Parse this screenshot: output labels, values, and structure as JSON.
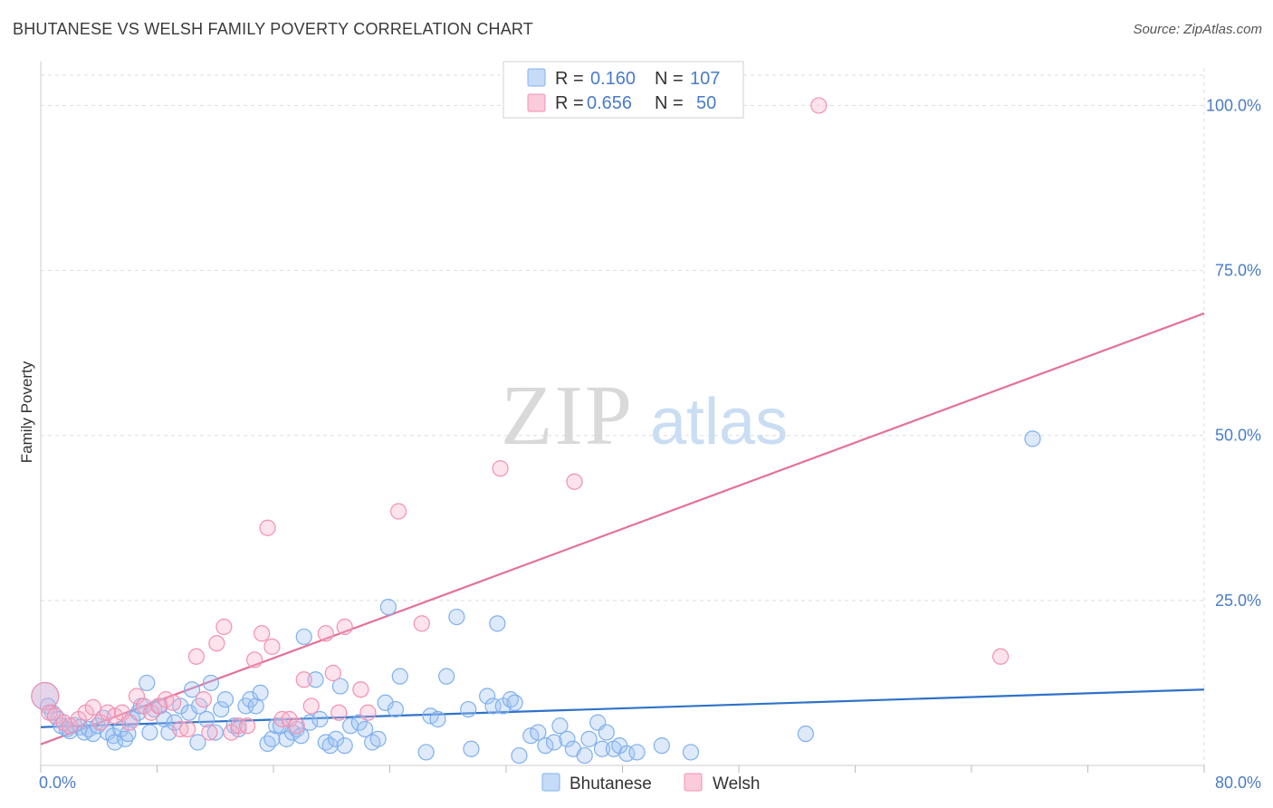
{
  "title": "BHUTANESE VS WELSH FAMILY POVERTY CORRELATION CHART",
  "source": "Source: ZipAtlas.com",
  "watermark": {
    "zip": "ZIP",
    "atlas": "atlas"
  },
  "legend": {
    "rows": [
      {
        "r_label": "R =",
        "r_value": "0.160",
        "n_label": "N =",
        "n_value": "107",
        "color": "#7fb0ee",
        "fill": "#c5dbf7"
      },
      {
        "r_label": "R =",
        "r_value": "0.656",
        "n_label": "N =",
        "n_value": "50",
        "color": "#f291b2",
        "fill": "#f9cbdb"
      }
    ]
  },
  "colors": {
    "blue_line": "#2f72c8",
    "pink_line": "#e4719a",
    "blue_point_stroke": "#7fb0ee",
    "blue_point_fill": "rgba(160,196,242,0.35)",
    "pink_point_stroke": "#f291b2",
    "pink_point_fill": "rgba(246,176,201,0.35)",
    "tick_text": "#4a7cc7",
    "grid": "#dddddd"
  },
  "chart_data": {
    "type": "scatter",
    "title": "BHUTANESE VS WELSH FAMILY POVERTY CORRELATION CHART",
    "xlabel": "",
    "ylabel": "Family Poverty",
    "xlim": [
      0,
      80
    ],
    "ylim": [
      0,
      105
    ],
    "x_tick_labels": [
      {
        "value": 0,
        "label": "0.0%"
      },
      {
        "value": 80,
        "label": "80.0%"
      }
    ],
    "y_tick_labels": [
      {
        "value": 25,
        "label": "25.0%"
      },
      {
        "value": 50,
        "label": "50.0%"
      },
      {
        "value": 75,
        "label": "75.0%"
      },
      {
        "value": 100,
        "label": "100.0%"
      }
    ],
    "grid": true,
    "legend_position": "top-center",
    "series": [
      {
        "name": "Bhutanese",
        "color": "#7fb0ee",
        "trend": {
          "x": [
            0,
            80
          ],
          "y": [
            5.8,
            11.5
          ]
        },
        "points": [
          [
            0.3,
            10.5
          ],
          [
            0.5,
            9.0
          ],
          [
            0.8,
            8.0
          ],
          [
            1.2,
            7.0
          ],
          [
            1.4,
            6.0
          ],
          [
            1.8,
            5.5
          ],
          [
            2.0,
            5.2
          ],
          [
            2.3,
            6.1
          ],
          [
            2.7,
            5.8
          ],
          [
            3.0,
            5.0
          ],
          [
            3.3,
            5.5
          ],
          [
            3.6,
            4.8
          ],
          [
            3.9,
            6.0
          ],
          [
            4.3,
            7.2
          ],
          [
            4.6,
            5.0
          ],
          [
            5.0,
            4.5
          ],
          [
            5.1,
            3.5
          ],
          [
            5.5,
            5.5
          ],
          [
            5.8,
            4.0
          ],
          [
            6.0,
            4.8
          ],
          [
            6.3,
            7.0
          ],
          [
            6.7,
            8.0
          ],
          [
            6.9,
            9.0
          ],
          [
            7.3,
            12.5
          ],
          [
            7.5,
            5.0
          ],
          [
            7.8,
            8.5
          ],
          [
            8.2,
            9.0
          ],
          [
            8.5,
            7.0
          ],
          [
            8.8,
            5.0
          ],
          [
            9.2,
            6.5
          ],
          [
            9.6,
            9.0
          ],
          [
            10.2,
            8.0
          ],
          [
            10.4,
            11.5
          ],
          [
            10.8,
            3.5
          ],
          [
            10.9,
            9.0
          ],
          [
            11.4,
            7.0
          ],
          [
            11.7,
            12.5
          ],
          [
            12.0,
            5.0
          ],
          [
            12.4,
            8.5
          ],
          [
            12.7,
            10.0
          ],
          [
            13.3,
            6.0
          ],
          [
            13.6,
            5.5
          ],
          [
            14.1,
            9.0
          ],
          [
            14.4,
            10.0
          ],
          [
            14.8,
            9.0
          ],
          [
            15.1,
            11.0
          ],
          [
            15.6,
            3.3
          ],
          [
            15.9,
            4.0
          ],
          [
            16.2,
            6.0
          ],
          [
            16.5,
            6.0
          ],
          [
            16.9,
            4.0
          ],
          [
            17.3,
            5.0
          ],
          [
            17.6,
            5.5
          ],
          [
            17.9,
            4.5
          ],
          [
            18.1,
            19.5
          ],
          [
            18.5,
            6.5
          ],
          [
            18.9,
            13.0
          ],
          [
            19.2,
            7.0
          ],
          [
            19.6,
            3.5
          ],
          [
            19.9,
            3.0
          ],
          [
            20.3,
            4.0
          ],
          [
            20.6,
            12.0
          ],
          [
            20.9,
            3.0
          ],
          [
            21.3,
            6.0
          ],
          [
            21.9,
            6.5
          ],
          [
            22.3,
            5.5
          ],
          [
            22.8,
            3.5
          ],
          [
            23.2,
            4.0
          ],
          [
            23.9,
            24.0
          ],
          [
            23.7,
            9.5
          ],
          [
            24.4,
            8.5
          ],
          [
            24.7,
            13.5
          ],
          [
            26.5,
            2.0
          ],
          [
            26.8,
            7.5
          ],
          [
            27.3,
            7.0
          ],
          [
            27.9,
            13.5
          ],
          [
            28.6,
            22.5
          ],
          [
            29.4,
            8.5
          ],
          [
            29.6,
            2.5
          ],
          [
            30.7,
            10.5
          ],
          [
            31.1,
            9.0
          ],
          [
            31.4,
            21.5
          ],
          [
            31.8,
            9.0
          ],
          [
            32.3,
            10.0
          ],
          [
            32.6,
            9.5
          ],
          [
            32.9,
            1.5
          ],
          [
            33.7,
            4.5
          ],
          [
            34.2,
            5.0
          ],
          [
            34.7,
            3.0
          ],
          [
            35.3,
            3.5
          ],
          [
            35.7,
            6.0
          ],
          [
            36.2,
            4.0
          ],
          [
            36.6,
            2.5
          ],
          [
            37.4,
            1.5
          ],
          [
            37.7,
            4.0
          ],
          [
            38.3,
            6.5
          ],
          [
            38.6,
            2.5
          ],
          [
            38.9,
            5.0
          ],
          [
            39.4,
            2.5
          ],
          [
            39.8,
            3.0
          ],
          [
            40.3,
            1.8
          ],
          [
            41.0,
            2.0
          ],
          [
            42.7,
            3.0
          ],
          [
            44.7,
            2.0
          ],
          [
            52.6,
            4.8
          ],
          [
            68.2,
            49.5
          ]
        ]
      },
      {
        "name": "Welsh",
        "color": "#f291b2",
        "trend": {
          "x": [
            0,
            80
          ],
          "y": [
            3.2,
            68.5
          ]
        },
        "points": [
          [
            0.3,
            10.5
          ],
          [
            0.6,
            8.0
          ],
          [
            1.0,
            7.5
          ],
          [
            1.6,
            6.5
          ],
          [
            2.0,
            6.0
          ],
          [
            2.6,
            7.0
          ],
          [
            3.1,
            8.0
          ],
          [
            3.6,
            8.8
          ],
          [
            4.1,
            6.5
          ],
          [
            4.6,
            8.0
          ],
          [
            5.1,
            7.5
          ],
          [
            5.6,
            8.0
          ],
          [
            6.1,
            6.5
          ],
          [
            6.6,
            10.5
          ],
          [
            7.1,
            9.0
          ],
          [
            7.6,
            8.0
          ],
          [
            8.1,
            9.0
          ],
          [
            8.6,
            10.0
          ],
          [
            9.1,
            9.5
          ],
          [
            9.6,
            5.5
          ],
          [
            10.1,
            5.5
          ],
          [
            10.7,
            16.5
          ],
          [
            11.2,
            10.0
          ],
          [
            11.6,
            5.0
          ],
          [
            12.1,
            18.5
          ],
          [
            12.6,
            21.0
          ],
          [
            13.1,
            5.0
          ],
          [
            13.6,
            6.0
          ],
          [
            14.2,
            6.0
          ],
          [
            14.7,
            16.0
          ],
          [
            15.2,
            20.0
          ],
          [
            15.6,
            36.0
          ],
          [
            15.9,
            18.0
          ],
          [
            16.6,
            7.0
          ],
          [
            17.1,
            7.0
          ],
          [
            17.6,
            6.0
          ],
          [
            18.1,
            13.0
          ],
          [
            18.6,
            9.0
          ],
          [
            19.6,
            20.0
          ],
          [
            20.1,
            14.0
          ],
          [
            20.5,
            8.0
          ],
          [
            20.9,
            21.0
          ],
          [
            22.0,
            11.5
          ],
          [
            22.5,
            8.0
          ],
          [
            24.6,
            38.5
          ],
          [
            26.2,
            21.5
          ],
          [
            31.6,
            45.0
          ],
          [
            36.7,
            43.0
          ],
          [
            53.5,
            100.0
          ],
          [
            66.0,
            16.5
          ]
        ]
      }
    ]
  },
  "bottom_legend": [
    {
      "label": "Bhutanese",
      "stroke": "#7fb0ee",
      "fill": "#c5dbf7"
    },
    {
      "label": "Welsh",
      "stroke": "#f291b2",
      "fill": "#f9cbdb"
    }
  ]
}
